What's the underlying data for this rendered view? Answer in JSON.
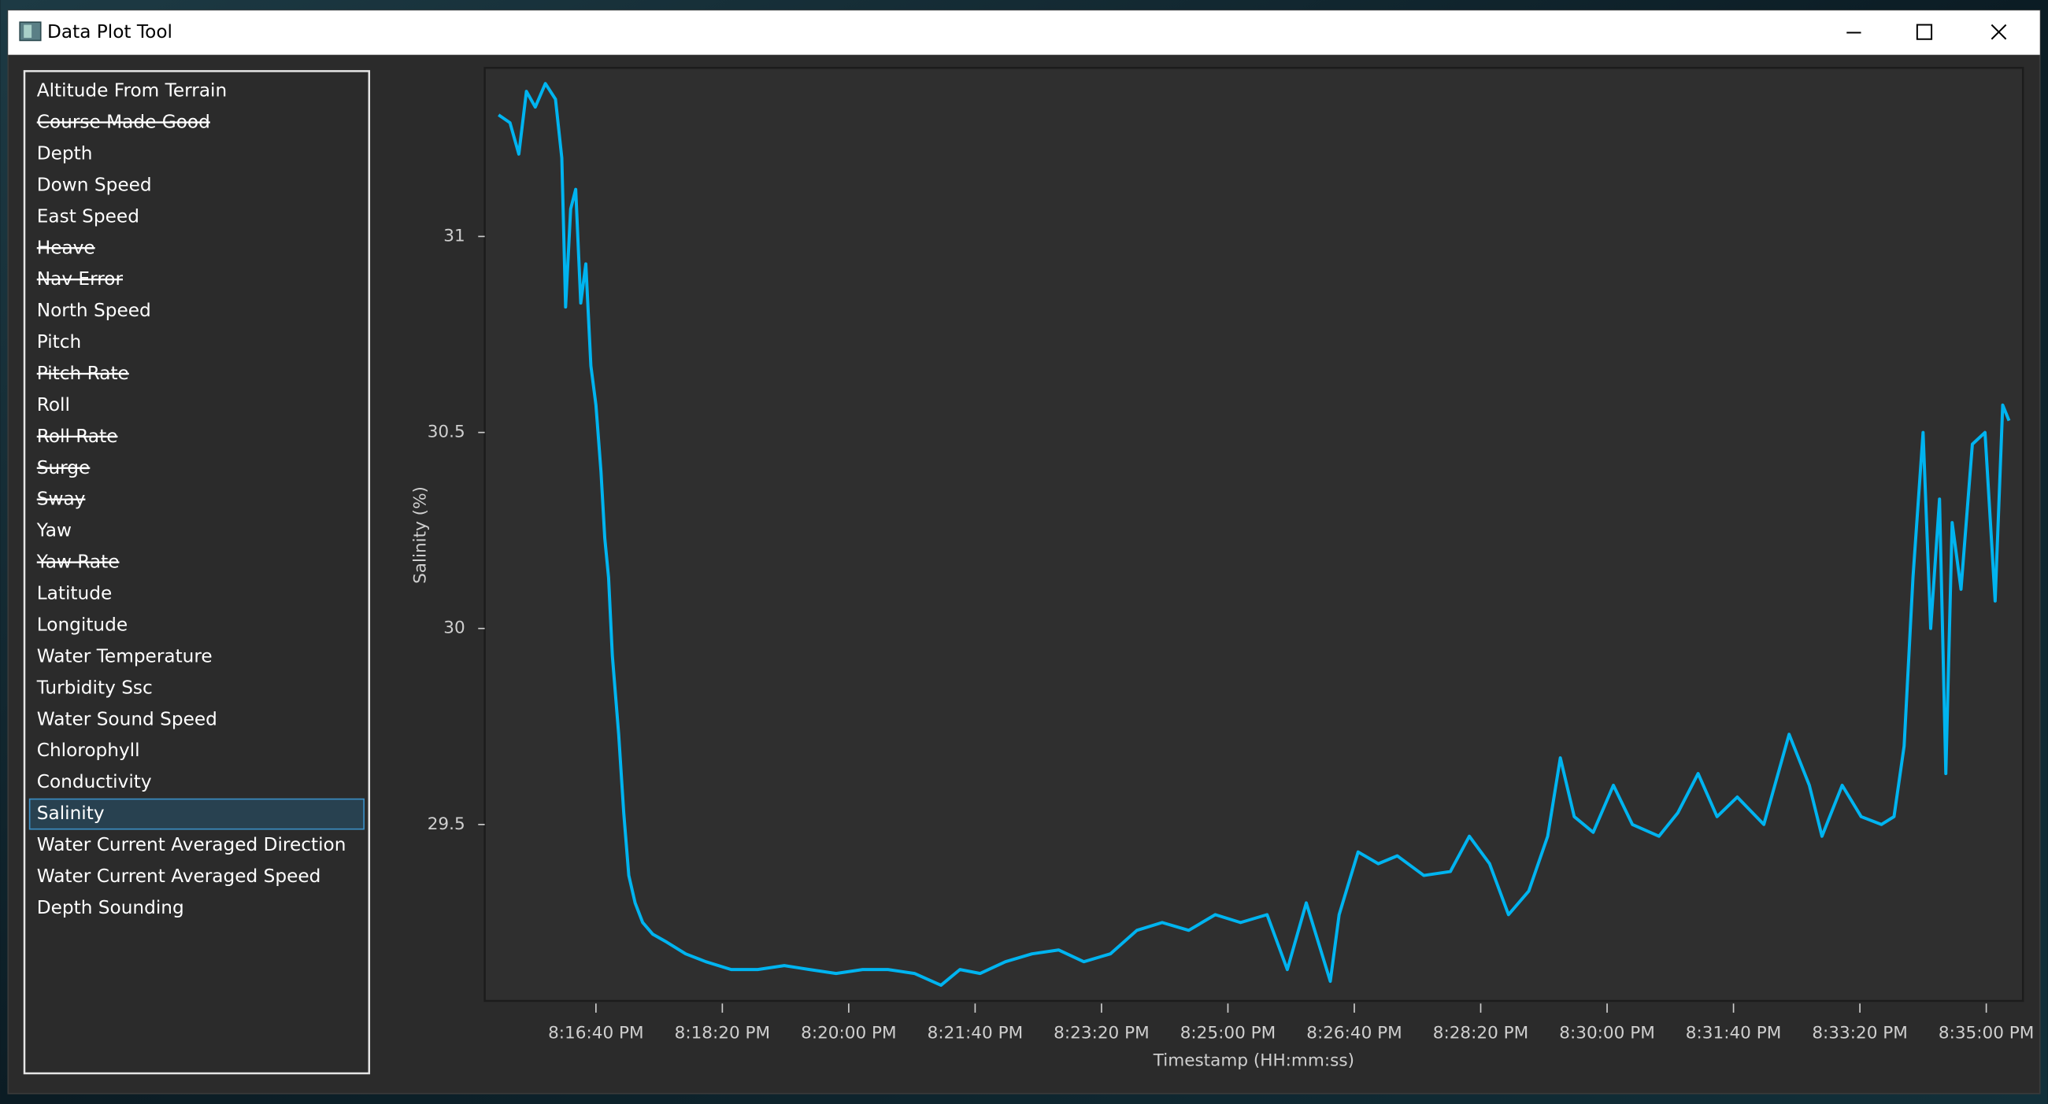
{
  "window": {
    "title": "Data Plot Tool"
  },
  "sidebar": {
    "items": [
      {
        "label": "Altitude From Terrain",
        "struck": false
      },
      {
        "label": "Course Made Good",
        "struck": true
      },
      {
        "label": "Depth",
        "struck": false
      },
      {
        "label": "Down Speed",
        "struck": false
      },
      {
        "label": "East Speed",
        "struck": false
      },
      {
        "label": "Heave",
        "struck": true
      },
      {
        "label": "Nav Error",
        "struck": true
      },
      {
        "label": "North Speed",
        "struck": false
      },
      {
        "label": "Pitch",
        "struck": false
      },
      {
        "label": "Pitch Rate",
        "struck": true
      },
      {
        "label": "Roll",
        "struck": false
      },
      {
        "label": "Roll Rate",
        "struck": true
      },
      {
        "label": "Surge",
        "struck": true
      },
      {
        "label": "Sway",
        "struck": true
      },
      {
        "label": "Yaw",
        "struck": false
      },
      {
        "label": "Yaw Rate",
        "struck": true
      },
      {
        "label": "Latitude",
        "struck": false
      },
      {
        "label": "Longitude",
        "struck": false
      },
      {
        "label": "Water Temperature",
        "struck": false
      },
      {
        "label": "Turbidity Ssc",
        "struck": false
      },
      {
        "label": "Water Sound Speed",
        "struck": false
      },
      {
        "label": "Chlorophyll",
        "struck": false
      },
      {
        "label": "Conductivity",
        "struck": false
      },
      {
        "label": "Salinity",
        "struck": false,
        "selected": true
      },
      {
        "label": "Water Current Averaged Direction",
        "struck": false
      },
      {
        "label": "Water Current Averaged Speed",
        "struck": false
      },
      {
        "label": "Depth Sounding",
        "struck": false
      }
    ]
  },
  "chart_data": {
    "type": "line",
    "y_label": "Salinity (%)",
    "x_label": "Timestamp (HH:mm:ss)",
    "color": "#00b4f0",
    "x": [
      "8:15:23 PM",
      "8:15:32 PM",
      "8:15:39 PM",
      "8:15:45 PM",
      "8:15:52 PM",
      "8:16:00 PM",
      "8:16:08 PM",
      "8:16:13 PM",
      "8:16:16 PM",
      "8:16:20 PM",
      "8:16:24 PM",
      "8:16:28 PM",
      "8:16:32 PM",
      "8:16:36 PM",
      "8:16:40 PM",
      "8:16:44 PM",
      "8:16:47 PM",
      "8:16:50 PM",
      "8:16:53 PM",
      "8:16:58 PM",
      "8:17:02 PM",
      "8:17:06 PM",
      "8:17:11 PM",
      "8:17:17 PM",
      "8:17:25 PM",
      "8:17:36 PM",
      "8:17:51 PM",
      "8:18:07 PM",
      "8:18:27 PM",
      "8:18:48 PM",
      "8:19:09 PM",
      "8:19:29 PM",
      "8:19:50 PM",
      "8:20:11 PM",
      "8:20:31 PM",
      "8:20:52 PM",
      "8:21:13 PM",
      "8:21:28 PM",
      "8:21:44 PM",
      "8:22:04 PM",
      "8:22:25 PM",
      "8:22:46 PM",
      "8:23:06 PM",
      "8:23:27 PM",
      "8:23:48 PM",
      "8:24:08 PM",
      "8:24:29 PM",
      "8:24:50 PM",
      "8:25:10 PM",
      "8:25:31 PM",
      "8:25:47 PM",
      "8:26:02 PM",
      "8:26:21 PM",
      "8:26:28 PM",
      "8:26:43 PM",
      "8:26:59 PM",
      "8:27:14 PM",
      "8:27:35 PM",
      "8:27:56 PM",
      "8:28:11 PM",
      "8:28:27 PM",
      "8:28:42 PM",
      "8:28:58 PM",
      "8:29:13 PM",
      "8:29:23 PM",
      "8:29:34 PM",
      "8:29:49 PM",
      "8:30:05 PM",
      "8:30:20 PM",
      "8:30:41 PM",
      "8:30:56 PM",
      "8:31:12 PM",
      "8:31:27 PM",
      "8:31:43 PM",
      "8:32:04 PM",
      "8:32:24 PM",
      "8:32:40 PM",
      "8:32:50 PM",
      "8:33:06 PM",
      "8:33:21 PM",
      "8:33:37 PM",
      "8:33:47 PM",
      "8:33:55 PM",
      "8:34:02 PM",
      "8:34:10 PM",
      "8:34:16 PM",
      "8:34:23 PM",
      "8:34:28 PM",
      "8:34:33 PM",
      "8:34:40 PM",
      "8:34:49 PM",
      "8:34:59 PM",
      "8:35:07 PM",
      "8:35:13 PM",
      "8:35:18 PM"
    ],
    "values": [
      31.31,
      31.29,
      31.21,
      31.37,
      31.33,
      31.39,
      31.35,
      31.2,
      30.82,
      31.07,
      31.12,
      30.83,
      30.93,
      30.67,
      30.57,
      30.4,
      30.23,
      30.13,
      29.93,
      29.73,
      29.53,
      29.37,
      29.3,
      29.25,
      29.22,
      29.2,
      29.17,
      29.15,
      29.13,
      29.13,
      29.14,
      29.13,
      29.12,
      29.13,
      29.13,
      29.12,
      29.09,
      29.13,
      29.12,
      29.15,
      29.17,
      29.18,
      29.15,
      29.17,
      29.23,
      29.25,
      29.23,
      29.27,
      29.25,
      29.27,
      29.13,
      29.3,
      29.1,
      29.27,
      29.43,
      29.4,
      29.42,
      29.37,
      29.38,
      29.47,
      29.4,
      29.27,
      29.33,
      29.47,
      29.67,
      29.52,
      29.48,
      29.6,
      29.5,
      29.47,
      29.53,
      29.63,
      29.52,
      29.57,
      29.5,
      29.73,
      29.6,
      29.47,
      29.6,
      29.52,
      29.5,
      29.52,
      29.7,
      30.13,
      30.5,
      30.0,
      30.33,
      29.63,
      30.27,
      30.1,
      30.47,
      30.5,
      30.07,
      30.57,
      30.53
    ],
    "ylim": [
      29.05,
      31.43
    ],
    "yticks": [
      29.5,
      30,
      30.5,
      31
    ],
    "xlim": [
      "8:15:12 PM",
      "8:35:29 PM"
    ],
    "xticks": [
      "8:16:40 PM",
      "8:18:20 PM",
      "8:20:00 PM",
      "8:21:40 PM",
      "8:23:20 PM",
      "8:25:00 PM",
      "8:26:40 PM",
      "8:28:20 PM",
      "8:30:00 PM",
      "8:31:40 PM",
      "8:33:20 PM",
      "8:35:00 PM"
    ]
  }
}
